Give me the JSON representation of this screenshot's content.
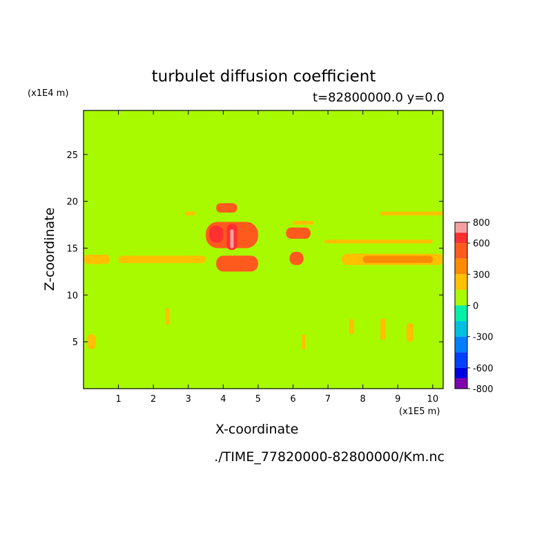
{
  "chart_data": {
    "type": "heatmap",
    "title": "turbulet diffusion coefficient",
    "subtitle": "t=82800000.0 y=0.0",
    "xlabel": "X-coordinate",
    "ylabel": "Z-coordinate",
    "x_unit": "(x1E5 m)",
    "y_unit": "(x1E4 m)",
    "xlim": [
      0,
      10.3
    ],
    "ylim": [
      0,
      29.7
    ],
    "x_ticks": [
      1,
      2,
      3,
      4,
      5,
      6,
      7,
      8,
      9,
      10
    ],
    "y_ticks": [
      5,
      10,
      15,
      20,
      25
    ],
    "background_value": 0,
    "colorbar": {
      "ticks": [
        800,
        600,
        300,
        0,
        -300,
        -600,
        -800
      ],
      "levels": [
        {
          "min": 700,
          "max": 800,
          "color": "#f4a0a0"
        },
        {
          "min": 600,
          "max": 700,
          "color": "#ff3030"
        },
        {
          "min": 450,
          "max": 600,
          "color": "#ff5a1e"
        },
        {
          "min": 300,
          "max": 450,
          "color": "#ff8c00"
        },
        {
          "min": 150,
          "max": 300,
          "color": "#ffc000"
        },
        {
          "min": 0,
          "max": 150,
          "color": "#a8fa00"
        },
        {
          "min": -150,
          "max": 0,
          "color": "#00f0a8"
        },
        {
          "min": -300,
          "max": -150,
          "color": "#00c0e0"
        },
        {
          "min": -450,
          "max": -300,
          "color": "#0080ff"
        },
        {
          "min": -600,
          "max": -450,
          "color": "#0040ff"
        },
        {
          "min": -700,
          "max": -600,
          "color": "#0000e0"
        },
        {
          "min": -800,
          "max": -700,
          "color": "#8000b0"
        }
      ]
    },
    "features": [
      {
        "x0": 0.0,
        "x1": 0.75,
        "z0": 13.3,
        "z1": 14.3,
        "color": "#ffc000"
      },
      {
        "x0": 1.0,
        "x1": 3.5,
        "z0": 13.4,
        "z1": 14.2,
        "color": "#ffc000"
      },
      {
        "x0": 7.4,
        "x1": 10.3,
        "z0": 13.2,
        "z1": 14.4,
        "color": "#ffc000"
      },
      {
        "x0": 8.0,
        "x1": 10.0,
        "z0": 13.4,
        "z1": 14.2,
        "color": "#ff8c00"
      },
      {
        "x0": 6.9,
        "x1": 10.0,
        "z0": 15.5,
        "z1": 15.9,
        "color": "#ffc000"
      },
      {
        "x0": 8.5,
        "x1": 10.3,
        "z0": 18.5,
        "z1": 18.9,
        "color": "#ffc000"
      },
      {
        "x0": 6.0,
        "x1": 6.6,
        "z0": 17.5,
        "z1": 17.9,
        "color": "#ffc000"
      },
      {
        "x0": 2.9,
        "x1": 3.2,
        "z0": 18.5,
        "z1": 18.9,
        "color": "#ffc000"
      },
      {
        "x0": 3.5,
        "x1": 5.0,
        "z0": 15.0,
        "z1": 17.8,
        "color": "#ff5a1e"
      },
      {
        "x0": 3.6,
        "x1": 4.0,
        "z0": 15.6,
        "z1": 17.4,
        "color": "#ff3030"
      },
      {
        "x0": 4.1,
        "x1": 4.4,
        "z0": 14.8,
        "z1": 17.6,
        "color": "#ff3030"
      },
      {
        "x0": 4.2,
        "x1": 4.3,
        "z0": 15.0,
        "z1": 17.0,
        "color": "#f4a0a0"
      },
      {
        "x0": 3.8,
        "x1": 4.4,
        "z0": 18.8,
        "z1": 19.8,
        "color": "#ff5a1e"
      },
      {
        "x0": 3.8,
        "x1": 5.0,
        "z0": 12.5,
        "z1": 14.2,
        "color": "#ff5a1e"
      },
      {
        "x0": 5.8,
        "x1": 6.5,
        "z0": 16.0,
        "z1": 17.2,
        "color": "#ff5a1e"
      },
      {
        "x0": 5.9,
        "x1": 6.3,
        "z0": 13.2,
        "z1": 14.6,
        "color": "#ff5a1e"
      },
      {
        "x0": 0.1,
        "x1": 0.35,
        "z0": 4.2,
        "z1": 5.8,
        "color": "#ffc000"
      },
      {
        "x0": 2.35,
        "x1": 2.45,
        "z0": 6.8,
        "z1": 8.6,
        "color": "#ffc000"
      },
      {
        "x0": 6.25,
        "x1": 6.35,
        "z0": 4.2,
        "z1": 5.8,
        "color": "#ffc000"
      },
      {
        "x0": 7.6,
        "x1": 7.75,
        "z0": 5.8,
        "z1": 7.4,
        "color": "#ffc000"
      },
      {
        "x0": 8.5,
        "x1": 8.65,
        "z0": 5.2,
        "z1": 7.5,
        "color": "#ffc000"
      },
      {
        "x0": 9.25,
        "x1": 9.45,
        "z0": 5.0,
        "z1": 7.0,
        "color": "#ffc000"
      }
    ]
  },
  "footer": "./TIME_77820000-82800000/Km.nc"
}
